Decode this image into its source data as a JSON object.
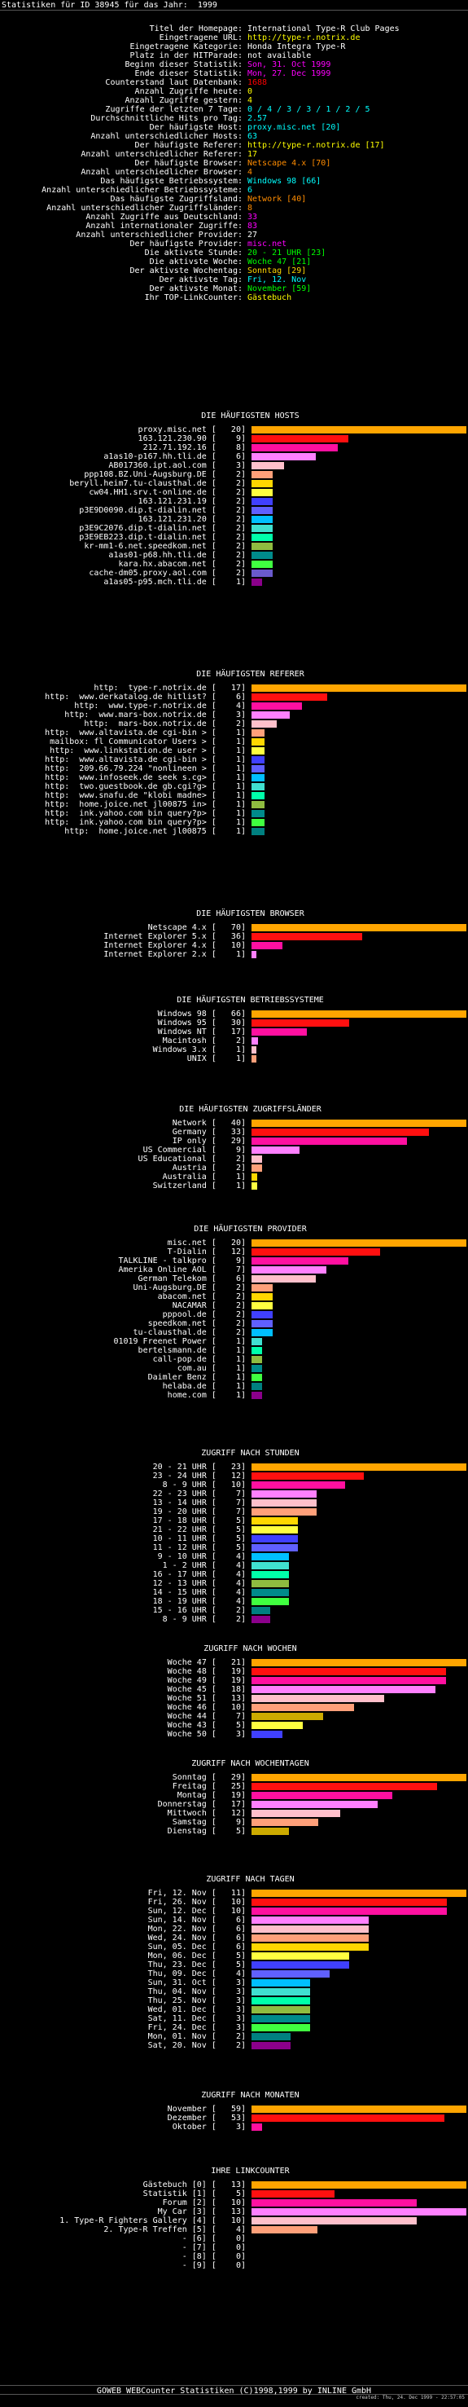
{
  "title": "Statistiken für ID 38945 für das Jahr:  1999",
  "stats": [
    {
      "k": "Titel der Homepage:",
      "v": "International Type-R Club Pages",
      "c": "#ffffff"
    },
    {
      "k": "Eingetragene URL:",
      "v": "http://type-r.notrix.de",
      "c": "#ffff00"
    },
    {
      "k": "Eingetragene Kategorie:",
      "v": "Honda Integra Type-R",
      "c": "#ffffff"
    },
    {
      "k": "Platz in der HITParade:",
      "v": "not available",
      "c": "#ffffff"
    },
    {
      "k": "Beginn dieser Statistik:",
      "v": "Son, 31. Oct 1999",
      "c": "#ff00ff"
    },
    {
      "k": "Ende dieser Statistik:",
      "v": "Mon, 27. Dec 1999",
      "c": "#ff00ff"
    },
    {
      "k": "Counterstand laut Datenbank:",
      "v": "1688",
      "c": "#ff0000"
    },
    {
      "k": "Anzahl Zugriffe heute:",
      "v": "0",
      "c": "#ffff00"
    },
    {
      "k": "Anzahl Zugriffe gestern:",
      "v": "4",
      "c": "#ffff00"
    },
    {
      "k": "Zugriffe der letzten 7 Tage:",
      "v": "0 / 4 / 3 / 3 / 1 / 2 / 5",
      "c": "#00ffff"
    },
    {
      "k": "Durchschnittliche Hits pro Tag:",
      "v": "2.57",
      "c": "#00ffff"
    },
    {
      "k": "Der häufigste Host:",
      "v": "proxy.misc.net [20]",
      "c": "#00ffff"
    },
    {
      "k": "Anzahl unterschiedlicher Hosts:",
      "v": "63",
      "c": "#00ffff"
    },
    {
      "k": "Der häufigste Referer:",
      "v": "http://type-r.notrix.de [17]",
      "c": "#ffff00"
    },
    {
      "k": "Anzahl unterschiedlicher Referer:",
      "v": "17",
      "c": "#ffff00"
    },
    {
      "k": "Der häufigste Browser:",
      "v": "Netscape 4.x [70]",
      "c": "#ff8c00"
    },
    {
      "k": "Anzahl unterschiedlicher Browser:",
      "v": "4",
      "c": "#ff8c00"
    },
    {
      "k": "Das häufigste Betriebssystem:",
      "v": "Windows 98 [66]",
      "c": "#00ffff"
    },
    {
      "k": "Anzahl unterschiedlicher Betriebssysteme:",
      "v": "6",
      "c": "#00ffff"
    },
    {
      "k": "Das häufigste Zugriffsland:",
      "v": "Network [40]",
      "c": "#ff8c00"
    },
    {
      "k": "Anzahl unterschiedlicher Zugriffsländer:",
      "v": "8",
      "c": "#ff8c00"
    },
    {
      "k": "Anzahl Zugriffe aus Deutschland:",
      "v": "33",
      "c": "#ff00ff"
    },
    {
      "k": "Anzahl internationaler Zugriffe:",
      "v": "83",
      "c": "#ff00ff"
    },
    {
      "k": "Anzahl unterschiedlicher Provider:",
      "v": "27",
      "c": "#ffffff"
    },
    {
      "k": "Der häufigste Provider:",
      "v": "misc.net",
      "c": "#ff00ff"
    },
    {
      "k": "Die aktivste Stunde:",
      "v": "20 - 21 UHR [23]",
      "c": "#00ff00"
    },
    {
      "k": "Die aktivste Woche:",
      "v": "Woche 47 [21]",
      "c": "#00ff00"
    },
    {
      "k": "Der aktivste Wochentag:",
      "v": "Sonntag [29]",
      "c": "#ffd700"
    },
    {
      "k": "Der aktivste Tag:",
      "v": "Fri, 12. Nov",
      "c": "#00ffff"
    },
    {
      "k": "Der aktivste Monat:",
      "v": "November [59]",
      "c": "#00ff00"
    },
    {
      "k": "Ihr TOP-LinkCounter:",
      "v": "Gästebuch",
      "c": "#ffff00"
    }
  ],
  "sections": [
    {
      "title": "DIE HÄUFIGSTEN HOSTS",
      "rows": [
        [
          "proxy.misc.net [   20]",
          20,
          "#ffa500"
        ],
        [
          "163.121.230.90 [    9]",
          9,
          "#ff1010"
        ],
        [
          "212.71.192.16 [    8]",
          8,
          "#ff10a0"
        ],
        [
          "a1as10-p167.hh.tli.de [    6]",
          6,
          "#ff80ff"
        ],
        [
          "AB017360.ipt.aol.com [    3]",
          3,
          "#ffc0cb"
        ],
        [
          "ppp108.BZ.Uni-Augsburg.DE [    2]",
          2,
          "#ffa07a"
        ],
        [
          "beryll.heim7.tu-clausthal.de [    2]",
          2,
          "#ffd700"
        ],
        [
          "cw04.HH1.srv.t-online.de [    2]",
          2,
          "#ffff40"
        ],
        [
          "163.121.231.19 [    2]",
          2,
          "#4040ff"
        ],
        [
          "p3E9D0090.dip.t-dialin.net [    2]",
          2,
          "#6060ff"
        ],
        [
          "163.121.231.20 [    2]",
          2,
          "#00bfff"
        ],
        [
          "p3E9C2076.dip.t-dialin.net [    2]",
          2,
          "#40e0d0"
        ],
        [
          "p3E9EB223.dip.t-dialin.net [    2]",
          2,
          "#00ffaa"
        ],
        [
          "kr-mm1-6.net.speedkom.net [    2]",
          2,
          "#8fbc40"
        ],
        [
          "a1as01-p68.hh.tli.de [    2]",
          2,
          "#008b8b"
        ],
        [
          "kara.hx.abacom.net [    2]",
          2,
          "#40ff40"
        ],
        [
          "cache-dm05.proxy.aol.com [    2]",
          2,
          "#6a5acd"
        ],
        [
          "a1as05-p95.mch.tli.de [    1]",
          1,
          "#8b008b"
        ]
      ]
    },
    {
      "title": "DIE HÄUFIGSTEN REFERER",
      "rows": [
        [
          "http:  type-r.notrix.de [   17]",
          17,
          "#ffa500"
        ],
        [
          "http:  www.derkatalog.de hitlist? [    6]",
          6,
          "#ff1010"
        ],
        [
          "http:  www.type-r.notrix.de [    4]",
          4,
          "#ff10a0"
        ],
        [
          "http:  www.mars-box.notrix.de [    3]",
          3,
          "#ff80ff"
        ],
        [
          "http:  mars-box.notrix.de [    2]",
          2,
          "#ffc0cb"
        ],
        [
          "http:  www.altavista.de cgi-bin > [    1]",
          1,
          "#ffa07a"
        ],
        [
          "mailbox: fl Communicator Users > [    1]",
          1,
          "#ffd700"
        ],
        [
          "http:  www.linkstation.de user > [    1]",
          1,
          "#ffff40"
        ],
        [
          "http:  www.altavista.de cgi-bin > [    1]",
          1,
          "#4040ff"
        ],
        [
          "http:  209.66.79.224 \"nonlineen > [    1]",
          1,
          "#6060ff"
        ],
        [
          "http:  www.infoseek.de seek s.cg> [    1]",
          1,
          "#00bfff"
        ],
        [
          "http:  two.guestbook.de gb.cgi?g> [    1]",
          1,
          "#40e0d0"
        ],
        [
          "http:  www.snafu.de \"klobi madne> [    1]",
          1,
          "#00ffaa"
        ],
        [
          "http:  home.joice.net jl00875 in> [    1]",
          1,
          "#8fbc40"
        ],
        [
          "http:  ink.yahoo.com bin query?p> [    1]",
          1,
          "#008b8b"
        ],
        [
          "http:  ink.yahoo.com bin query?p> [    1]",
          1,
          "#40ff40"
        ],
        [
          "http:  home.joice.net jl00875 [    1]",
          1,
          "#008080"
        ]
      ]
    },
    {
      "title": "DIE HÄUFIGSTEN BROWSER",
      "rows": [
        [
          "Netscape 4.x [   70]",
          70,
          "#ffa500"
        ],
        [
          "Internet Explorer 5.x [   36]",
          36,
          "#ff1010"
        ],
        [
          "Internet Explorer 4.x [   10]",
          10,
          "#ff10a0"
        ],
        [
          "Internet Explorer 2.x [    1]",
          1,
          "#ff80ff"
        ]
      ]
    },
    {
      "title": "DIE HÄUFIGSTEN BETRIEBSSYSTEME",
      "rows": [
        [
          "Windows 98 [   66]",
          66,
          "#ffa500"
        ],
        [
          "Windows 95 [   30]",
          30,
          "#ff1010"
        ],
        [
          "Windows NT [   17]",
          17,
          "#ff10a0"
        ],
        [
          "Macintosh [    2]",
          2,
          "#ff80ff"
        ],
        [
          "Windows 3.x [    1]",
          1,
          "#ffc0cb"
        ],
        [
          "UNIX [    1]",
          1,
          "#ffa07a"
        ]
      ]
    },
    {
      "title": "DIE HÄUFIGSTEN ZUGRIFFSLÄNDER",
      "rows": [
        [
          "Network [   40]",
          40,
          "#ffa500"
        ],
        [
          "Germany [   33]",
          33,
          "#ff1010"
        ],
        [
          "IP only [   29]",
          29,
          "#ff10a0"
        ],
        [
          "US Commercial [    9]",
          9,
          "#ff80ff"
        ],
        [
          "US Educational [    2]",
          2,
          "#ffc0cb"
        ],
        [
          "Austria [    2]",
          2,
          "#ffa07a"
        ],
        [
          "Australia [    1]",
          1,
          "#ffd700"
        ],
        [
          "Switzerland [    1]",
          1,
          "#ffff40"
        ]
      ]
    },
    {
      "title": "DIE HÄUFIGSTEN PROVIDER",
      "rows": [
        [
          "misc.net [   20]",
          20,
          "#ffa500"
        ],
        [
          "T-Dialin [   12]",
          12,
          "#ff1010"
        ],
        [
          "TALKLINE - talkpro [    9]",
          9,
          "#ff10a0"
        ],
        [
          "Amerika Online AOL [    7]",
          7,
          "#ff80ff"
        ],
        [
          "German Telekom [    6]",
          6,
          "#ffc0cb"
        ],
        [
          "Uni-Augsburg.DE [    2]",
          2,
          "#ffa07a"
        ],
        [
          "abacom.net [    2]",
          2,
          "#ffd700"
        ],
        [
          "NACAMAR [    2]",
          2,
          "#ffff40"
        ],
        [
          "pppool.de [    2]",
          2,
          "#4040ff"
        ],
        [
          "speedkom.net [    2]",
          2,
          "#6060ff"
        ],
        [
          "tu-clausthal.de [    2]",
          2,
          "#00bfff"
        ],
        [
          "01019 Freenet Power [    1]",
          1,
          "#40e0d0"
        ],
        [
          "bertelsmann.de [    1]",
          1,
          "#00ffaa"
        ],
        [
          "call-pop.de [    1]",
          1,
          "#8fbc40"
        ],
        [
          "com.au [    1]",
          1,
          "#008b8b"
        ],
        [
          "Daimler Benz [    1]",
          1,
          "#40ff40"
        ],
        [
          "helaba.de [    1]",
          1,
          "#008080"
        ],
        [
          "home.com [    1]",
          1,
          "#8b008b"
        ]
      ]
    },
    {
      "title": "ZUGRIFF NACH STUNDEN",
      "rows": [
        [
          "20 - 21 UHR [   23]",
          23,
          "#ffa500"
        ],
        [
          "23 - 24 UHR [   12]",
          12,
          "#ff1010"
        ],
        [
          "8 - 9 UHR [   10]",
          10,
          "#ff10a0"
        ],
        [
          "22 - 23 UHR [    7]",
          7,
          "#ff80ff"
        ],
        [
          "13 - 14 UHR [    7]",
          7,
          "#ffc0cb"
        ],
        [
          "19 - 20 UHR [    7]",
          7,
          "#ffa07a"
        ],
        [
          "17 - 18 UHR [    5]",
          5,
          "#ffd700"
        ],
        [
          "21 - 22 UHR [    5]",
          5,
          "#ffff40"
        ],
        [
          "10 - 11 UHR [    5]",
          5,
          "#4040ff"
        ],
        [
          "11 - 12 UHR [    5]",
          5,
          "#6060ff"
        ],
        [
          "9 - 10 UHR [    4]",
          4,
          "#00bfff"
        ],
        [
          "1 - 2 UHR [    4]",
          4,
          "#40e0d0"
        ],
        [
          "16 - 17 UHR [    4]",
          4,
          "#00ffaa"
        ],
        [
          "12 - 13 UHR [    4]",
          4,
          "#8fbc40"
        ],
        [
          "14 - 15 UHR [    4]",
          4,
          "#008b8b"
        ],
        [
          "18 - 19 UHR [    4]",
          4,
          "#40ff40"
        ],
        [
          "15 - 16 UHR [    2]",
          2,
          "#008080"
        ],
        [
          "8 - 9 UHR [    2]",
          2,
          "#8b008b"
        ]
      ]
    },
    {
      "title": "ZUGRIFF NACH WOCHEN",
      "rows": [
        [
          "Woche 47 [   21]",
          21,
          "#ffa500"
        ],
        [
          "Woche 48 [   19]",
          19,
          "#ff1010"
        ],
        [
          "Woche 49 [   19]",
          19,
          "#ff10a0"
        ],
        [
          "Woche 45 [   18]",
          18,
          "#ff80ff"
        ],
        [
          "Woche 51 [   13]",
          13,
          "#ffc0cb"
        ],
        [
          "Woche 46 [   10]",
          10,
          "#ffa07a"
        ],
        [
          "Woche 44 [    7]",
          7,
          "#ccaa00"
        ],
        [
          "Woche 43 [    5]",
          5,
          "#ffff40"
        ],
        [
          "Woche 50 [    3]",
          3,
          "#4040ff"
        ]
      ]
    },
    {
      "title": "ZUGRIFF NACH WOCHENTAGEN",
      "rows": [
        [
          "Sonntag [   29]",
          29,
          "#ffa500"
        ],
        [
          "Freitag [   25]",
          25,
          "#ff1010"
        ],
        [
          "Montag [   19]",
          19,
          "#ff10a0"
        ],
        [
          "Donnerstag [   17]",
          17,
          "#ff80ff"
        ],
        [
          "Mittwoch [   12]",
          12,
          "#ffc0cb"
        ],
        [
          "Samstag [    9]",
          9,
          "#ffa07a"
        ],
        [
          "Dienstag [    5]",
          5,
          "#ccaa00"
        ]
      ]
    },
    {
      "title": "ZUGRIFF NACH TAGEN",
      "rows": [
        [
          "Fri, 12. Nov [   11]",
          11,
          "#ffa500"
        ],
        [
          "Fri, 26. Nov [   10]",
          10,
          "#ff1010"
        ],
        [
          "Sun, 12. Dec [   10]",
          10,
          "#ff10a0"
        ],
        [
          "Sun, 14. Nov [    6]",
          6,
          "#ff80ff"
        ],
        [
          "Mon, 22. Nov [    6]",
          6,
          "#ffc0cb"
        ],
        [
          "Wed, 24. Nov [    6]",
          6,
          "#ffa07a"
        ],
        [
          "Sun, 05. Dec [    6]",
          6,
          "#ffd700"
        ],
        [
          "Mon, 06. Dec [    5]",
          5,
          "#ffff40"
        ],
        [
          "Thu, 23. Dec [    5]",
          5,
          "#4040ff"
        ],
        [
          "Thu, 09. Dec [    4]",
          4,
          "#6060ff"
        ],
        [
          "Sun, 31. Oct [    3]",
          3,
          "#00bfff"
        ],
        [
          "Thu, 04. Nov [    3]",
          3,
          "#40e0d0"
        ],
        [
          "Thu, 25. Nov [    3]",
          3,
          "#00ffaa"
        ],
        [
          "Wed, 01. Dec [    3]",
          3,
          "#8fbc40"
        ],
        [
          "Sat, 11. Dec [    3]",
          3,
          "#008b8b"
        ],
        [
          "Fri, 24. Dec [    3]",
          3,
          "#40ff40"
        ],
        [
          "Mon, 01. Nov [    2]",
          2,
          "#008080"
        ],
        [
          "Sat, 20. Nov [    2]",
          2,
          "#8b008b"
        ]
      ]
    },
    {
      "title": "ZUGRIFF NACH MONATEN",
      "rows": [
        [
          "November [   59]",
          59,
          "#ffa500"
        ],
        [
          "Dezember [   53]",
          53,
          "#ff1010"
        ],
        [
          "Oktober [    3]",
          3,
          "#ff10a0"
        ]
      ]
    },
    {
      "title": "IHRE LINKCOUNTER",
      "rows": [
        [
          "Gästebuch [0] [   13]",
          13,
          "#ffa500"
        ],
        [
          "Statistik [1] [    5]",
          5,
          "#ff1010"
        ],
        [
          "Forum [2] [   10]",
          10,
          "#ff10a0"
        ],
        [
          "My Car [3] [   13]",
          13,
          "#ff80ff"
        ],
        [
          "1. Type-R Fighters Gallery [4] [   10]",
          10,
          "#ffc0cb"
        ],
        [
          "2. Type-R Treffen [5] [    4]",
          4,
          "#ffa07a"
        ],
        [
          "- [6] [    0]",
          0,
          "#ffd700"
        ],
        [
          "- [7] [    0]",
          0,
          "#ffff40"
        ],
        [
          "- [8] [    0]",
          0,
          "#4040ff"
        ],
        [
          "- [9] [    0]",
          0,
          "#6060ff"
        ]
      ]
    }
  ],
  "footer": {
    "main": "GOWEB WEBCounter Statistiken (C)1998,1999 by INLINE GmbH",
    "created": "created: Thu, 24. Dec 1999 - 22:57:05"
  }
}
